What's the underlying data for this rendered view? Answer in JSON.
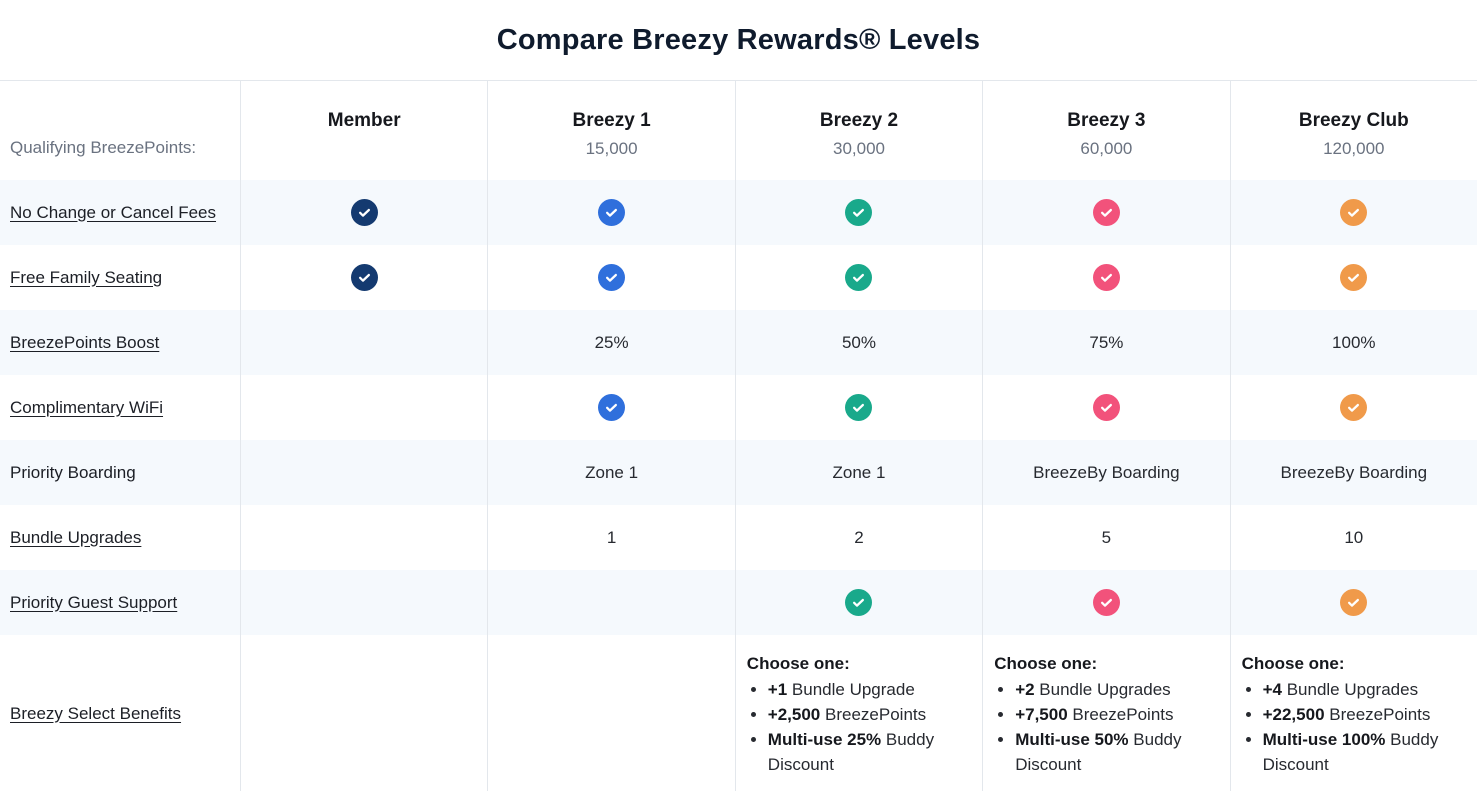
{
  "title": "Compare Breezy Rewards® Levels",
  "table": {
    "points_label": "Qualifying BreezePoints:",
    "choose_one_label": "Choose one:",
    "icons": {
      "check": "check-circle"
    },
    "tiers": [
      {
        "name": "Member",
        "points": "",
        "color": "#143a70"
      },
      {
        "name": "Breezy 1",
        "points": "15,000",
        "color": "#2f6fdc"
      },
      {
        "name": "Breezy 2",
        "points": "30,000",
        "color": "#19a98b"
      },
      {
        "name": "Breezy 3",
        "points": "60,000",
        "color": "#f2527b"
      },
      {
        "name": "Breezy Club",
        "points": "120,000",
        "color": "#f09a4a"
      }
    ],
    "rows": [
      {
        "label": "No Change or Cancel Fees",
        "underlined": true,
        "cells": [
          {
            "type": "check"
          },
          {
            "type": "check"
          },
          {
            "type": "check"
          },
          {
            "type": "check"
          },
          {
            "type": "check"
          }
        ]
      },
      {
        "label": "Free Family Seating",
        "underlined": true,
        "cells": [
          {
            "type": "check"
          },
          {
            "type": "check"
          },
          {
            "type": "check"
          },
          {
            "type": "check"
          },
          {
            "type": "check"
          }
        ]
      },
      {
        "label": "BreezePoints Boost",
        "underlined": true,
        "cells": [
          {
            "type": "empty"
          },
          {
            "type": "text",
            "value": "25%"
          },
          {
            "type": "text",
            "value": "50%"
          },
          {
            "type": "text",
            "value": "75%"
          },
          {
            "type": "text",
            "value": "100%"
          }
        ]
      },
      {
        "label": "Complimentary WiFi",
        "underlined": true,
        "cells": [
          {
            "type": "empty"
          },
          {
            "type": "check"
          },
          {
            "type": "check"
          },
          {
            "type": "check"
          },
          {
            "type": "check"
          }
        ]
      },
      {
        "label": "Priority Boarding",
        "underlined": false,
        "cells": [
          {
            "type": "empty"
          },
          {
            "type": "text",
            "value": "Zone 1"
          },
          {
            "type": "text",
            "value": "Zone 1"
          },
          {
            "type": "text",
            "value": "BreezeBy Boarding"
          },
          {
            "type": "text",
            "value": "BreezeBy Boarding"
          }
        ]
      },
      {
        "label": "Bundle Upgrades",
        "underlined": true,
        "cells": [
          {
            "type": "empty"
          },
          {
            "type": "text",
            "value": "1"
          },
          {
            "type": "text",
            "value": "2"
          },
          {
            "type": "text",
            "value": "5"
          },
          {
            "type": "text",
            "value": "10"
          }
        ]
      },
      {
        "label": "Priority Guest Support",
        "underlined": true,
        "cells": [
          {
            "type": "empty"
          },
          {
            "type": "empty"
          },
          {
            "type": "check"
          },
          {
            "type": "check"
          },
          {
            "type": "check"
          }
        ]
      },
      {
        "label": "Breezy Select Benefits",
        "underlined": true,
        "tall": true,
        "cells": [
          {
            "type": "empty"
          },
          {
            "type": "empty"
          },
          {
            "type": "list",
            "heading": "Choose one:",
            "items": [
              {
                "bold": "+1",
                "text": " Bundle Upgrade"
              },
              {
                "bold": "+2,500",
                "text": " BreezePoints"
              },
              {
                "bold": "Multi-use 25%",
                "text": " Buddy Discount"
              }
            ]
          },
          {
            "type": "list",
            "heading": "Choose one:",
            "items": [
              {
                "bold": "+2",
                "text": " Bundle Upgrades"
              },
              {
                "bold": "+7,500",
                "text": " BreezePoints"
              },
              {
                "bold": "Multi-use 50%",
                "text": " Buddy Discount"
              }
            ]
          },
          {
            "type": "list",
            "heading": "Choose one:",
            "items": [
              {
                "bold": "+4",
                "text": " Bundle Upgrades"
              },
              {
                "bold": "+22,500",
                "text": " BreezePoints"
              },
              {
                "bold": "Multi-use 100%",
                "text": " Buddy Discount"
              }
            ]
          }
        ]
      }
    ]
  }
}
